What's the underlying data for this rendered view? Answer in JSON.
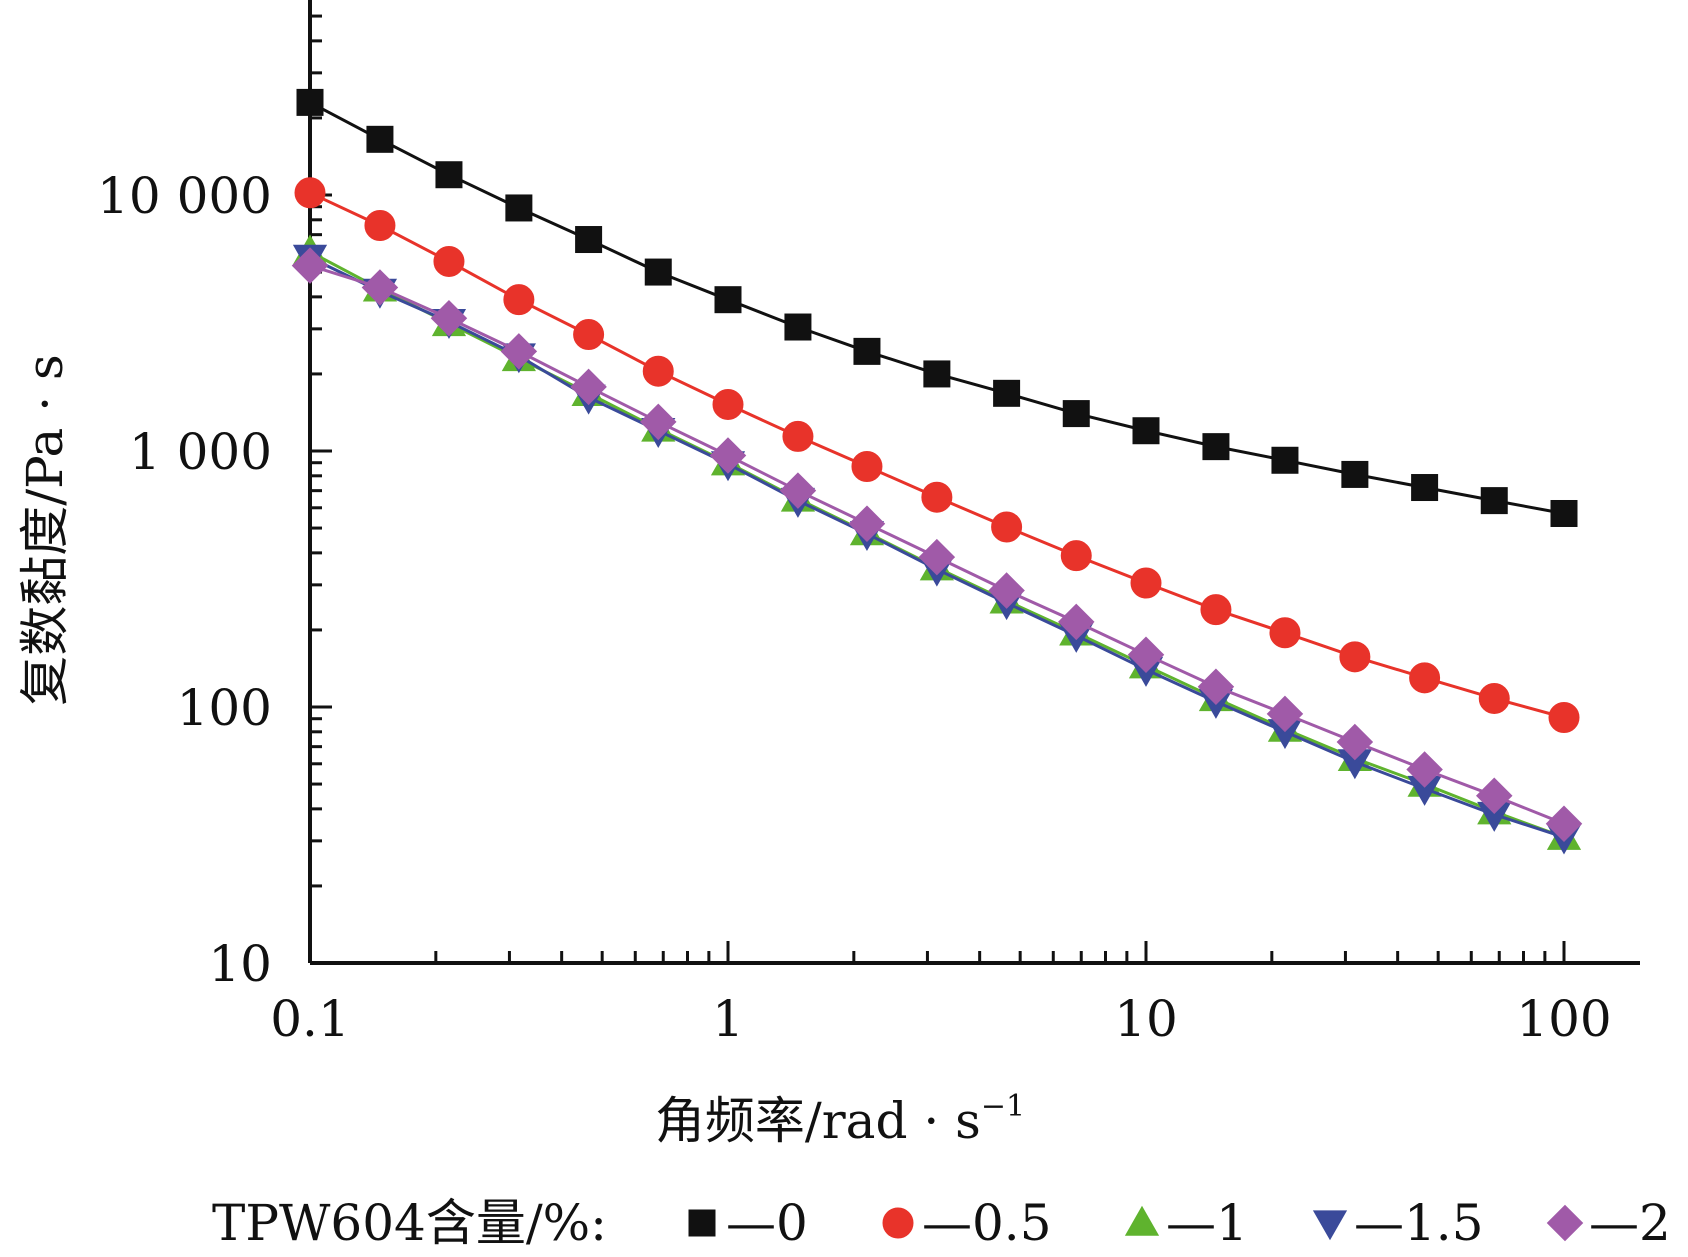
{
  "chart_data": {
    "type": "line",
    "xlabel_main": "角频率/rad · s",
    "xlabel_sup": "−1",
    "ylabel": "复数黏度/Pa · s",
    "x_scale": "log",
    "y_scale": "log",
    "xlim": [
      0.1,
      150
    ],
    "ylim": [
      10,
      70000
    ],
    "x_ticks": [
      {
        "value": 0.1,
        "label": "0.1"
      },
      {
        "value": 1,
        "label": "1"
      },
      {
        "value": 10,
        "label": "10"
      },
      {
        "value": 100,
        "label": "100"
      }
    ],
    "y_ticks": [
      {
        "value": 10,
        "label": "10"
      },
      {
        "value": 100,
        "label": "100"
      },
      {
        "value": 1000,
        "label": "1 000"
      },
      {
        "value": 10000,
        "label": "10 000"
      }
    ],
    "x": [
      0.1,
      0.147,
      0.215,
      0.316,
      0.464,
      0.681,
      1,
      1.47,
      2.15,
      3.16,
      4.64,
      6.81,
      10,
      14.7,
      21.5,
      31.6,
      46.4,
      68.1,
      100
    ],
    "legend_title": "TPW604含量/%:",
    "legend_position": "bottom",
    "series": [
      {
        "name": "—0",
        "marker": "square",
        "color": "#111111",
        "values": [
          23000,
          16500,
          12000,
          8900,
          6700,
          5000,
          3900,
          3050,
          2450,
          2000,
          1680,
          1400,
          1200,
          1040,
          920,
          810,
          720,
          640,
          570
        ]
      },
      {
        "name": "—0.5",
        "marker": "circle",
        "color": "#e8332a",
        "values": [
          10200,
          7600,
          5500,
          3900,
          2850,
          2050,
          1520,
          1140,
          870,
          660,
          505,
          390,
          305,
          240,
          195,
          157,
          130,
          108,
          91
        ]
      },
      {
        "name": "—1",
        "marker": "triangle-up",
        "color": "#5fb32e",
        "values": [
          6000,
          4300,
          3150,
          2300,
          1680,
          1220,
          900,
          650,
          480,
          350,
          260,
          195,
          145,
          108,
          82,
          63,
          50,
          39,
          31
        ]
      },
      {
        "name": "—1.5",
        "marker": "triangle-down",
        "color": "#3a4a9a",
        "values": [
          5700,
          4200,
          3200,
          2350,
          1620,
          1200,
          890,
          640,
          475,
          345,
          255,
          190,
          140,
          105,
          80,
          61,
          48,
          38,
          31
        ]
      },
      {
        "name": "—2",
        "marker": "diamond",
        "color": "#a05aa8",
        "values": [
          5300,
          4350,
          3300,
          2450,
          1780,
          1300,
          960,
          700,
          520,
          385,
          285,
          215,
          160,
          120,
          94,
          73,
          57,
          45,
          35
        ]
      }
    ]
  }
}
